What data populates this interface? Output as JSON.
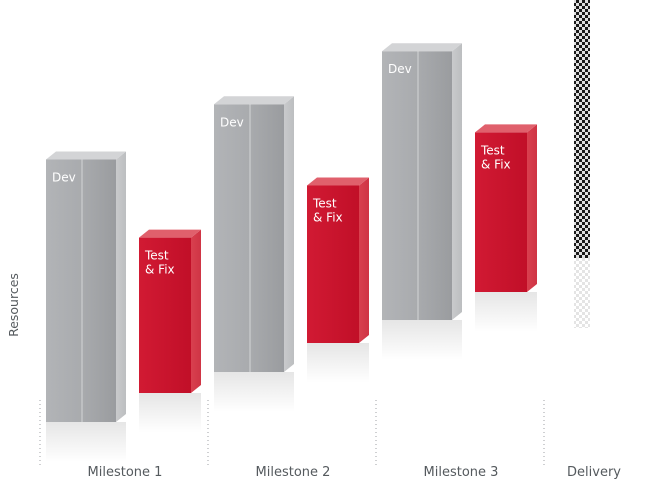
{
  "chart_data": {
    "type": "bar",
    "title": "",
    "ylabel": "Resources",
    "xlabel": "",
    "categories": [
      "Milestone 1",
      "Milestone 2",
      "Milestone 3",
      "Delivery"
    ],
    "series": [
      {
        "name": "Dev",
        "label": "Dev",
        "color": "#a7a9ac",
        "values": [
          250,
          255,
          256,
          null
        ]
      },
      {
        "name": "Test & Fix",
        "label": [
          "Test",
          "& Fix"
        ],
        "color": "#c8102e",
        "values": [
          148,
          150,
          152,
          null
        ]
      },
      {
        "name": "Delivery",
        "label": "",
        "color": "#222222",
        "pattern": "checkered",
        "values": [
          null,
          null,
          null,
          250
        ]
      }
    ],
    "grid": false,
    "legend": "none"
  }
}
